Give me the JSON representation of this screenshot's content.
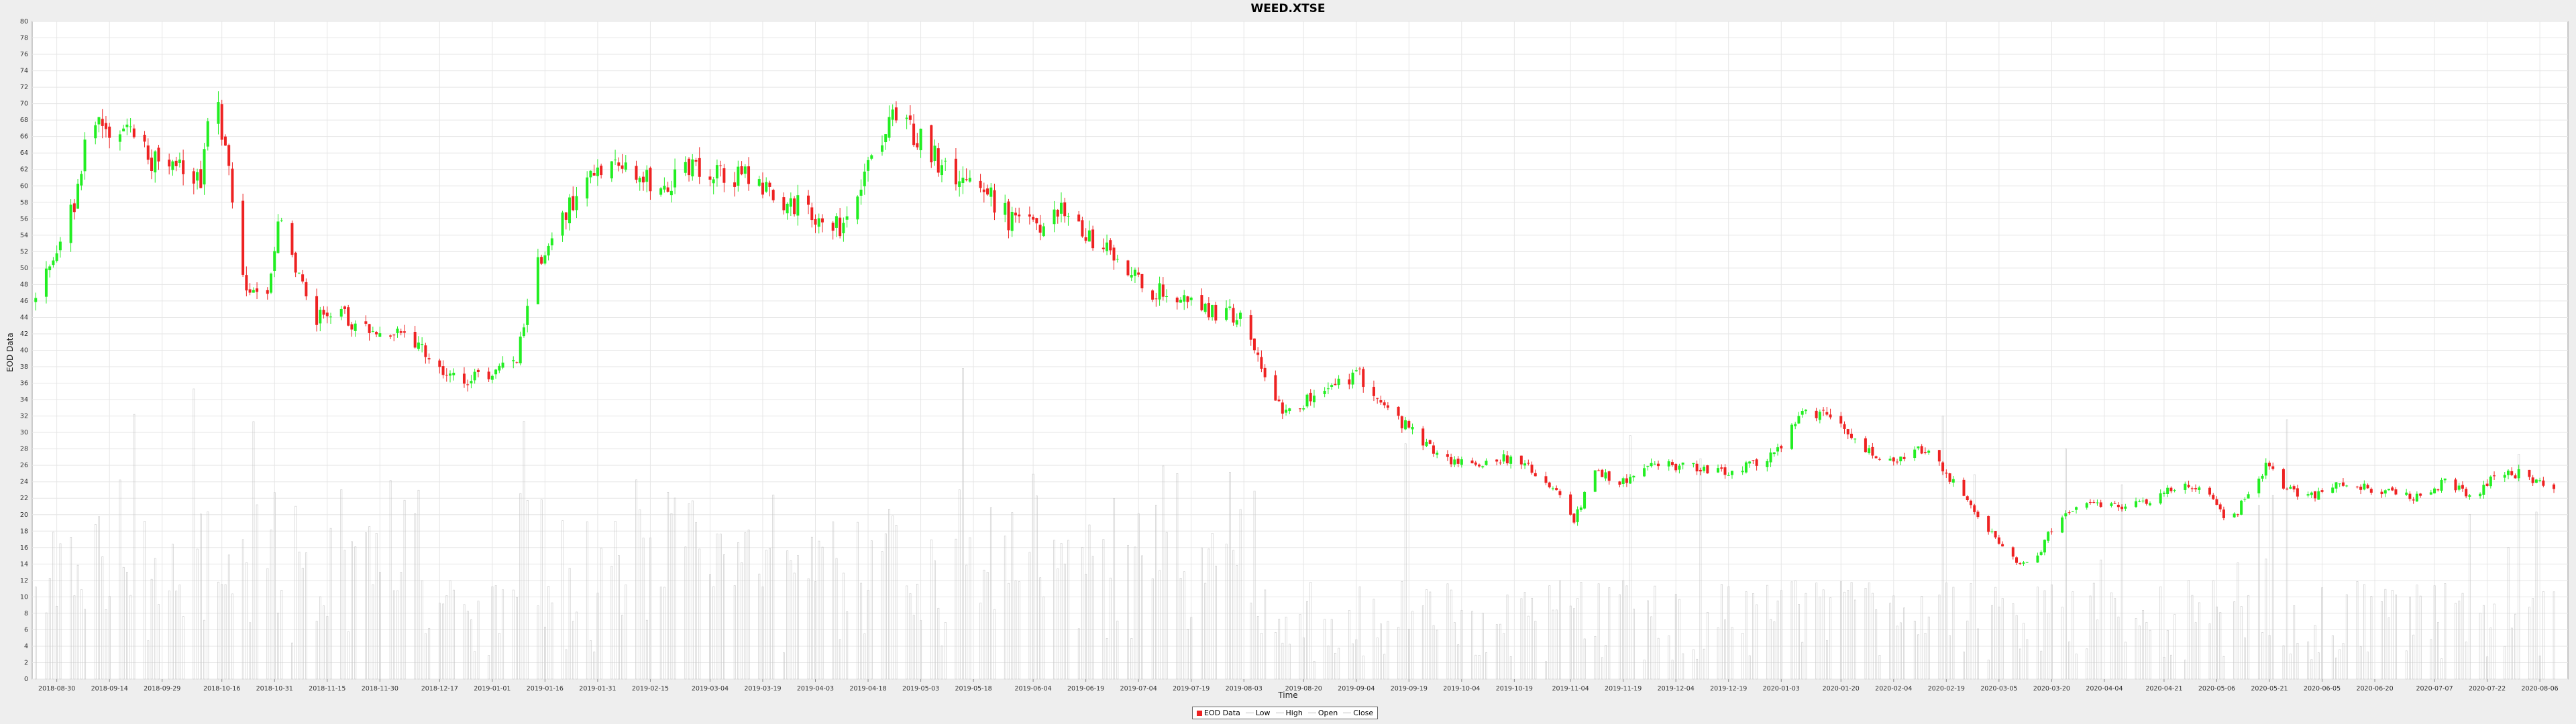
{
  "chart_data": {
    "type": "candlestick",
    "title": "WEED.XTSE",
    "xlabel": "Time",
    "ylabel": "EOD Data",
    "ylim": [
      0,
      80
    ],
    "yticks": [
      0,
      2,
      4,
      6,
      8,
      10,
      12,
      14,
      16,
      18,
      20,
      22,
      24,
      26,
      28,
      30,
      32,
      34,
      36,
      38,
      40,
      42,
      44,
      46,
      48,
      50,
      52,
      54,
      56,
      58,
      60,
      62,
      64,
      66,
      68,
      70,
      72,
      74,
      76,
      78,
      80
    ],
    "xticks": [
      "2018-08-30",
      "2018-09-14",
      "2018-09-29",
      "2018-10-16",
      "2018-10-31",
      "2018-11-15",
      "2018-11-30",
      "2018-12-17",
      "2019-01-01",
      "2019-01-16",
      "2019-01-31",
      "2019-02-15",
      "2019-03-04",
      "2019-03-19",
      "2019-04-03",
      "2019-04-18",
      "2019-05-03",
      "2019-05-18",
      "2019-06-04",
      "2019-06-19",
      "2019-07-04",
      "2019-07-19",
      "2019-08-03",
      "2019-08-20",
      "2019-09-04",
      "2019-09-19",
      "2019-10-04",
      "2019-10-19",
      "2019-11-04",
      "2019-11-19",
      "2019-12-04",
      "2019-12-19",
      "2020-01-03",
      "2020-01-20",
      "2020-02-04",
      "2020-02-19",
      "2020-03-05",
      "2020-03-20",
      "2020-04-04",
      "2020-04-21",
      "2020-05-06",
      "2020-05-21",
      "2020-06-05",
      "2020-06-20",
      "2020-07-07",
      "2020-07-22",
      "2020-08-06"
    ],
    "grid": true,
    "legend_placement": "bottom-center",
    "legend": [
      "EOD Data",
      "Low",
      "High",
      "Open",
      "Close"
    ],
    "series_close_path": [
      [
        "2018-08-24",
        46
      ],
      [
        "2018-08-30",
        52
      ],
      [
        "2018-09-04",
        58
      ],
      [
        "2018-09-08",
        68
      ],
      [
        "2018-09-14",
        66
      ],
      [
        "2018-09-20",
        67
      ],
      [
        "2018-09-26",
        63
      ],
      [
        "2018-10-03",
        62
      ],
      [
        "2018-10-10",
        61
      ],
      [
        "2018-10-14",
        72
      ],
      [
        "2018-10-18",
        62
      ],
      [
        "2018-10-22",
        48
      ],
      [
        "2018-10-28",
        45
      ],
      [
        "2018-11-01",
        56
      ],
      [
        "2018-11-06",
        50
      ],
      [
        "2018-11-12",
        44
      ],
      [
        "2018-11-20",
        44
      ],
      [
        "2018-11-30",
        42
      ],
      [
        "2018-12-08",
        42
      ],
      [
        "2018-12-15",
        39
      ],
      [
        "2018-12-22",
        36
      ],
      [
        "2019-01-01",
        37
      ],
      [
        "2019-01-08",
        39
      ],
      [
        "2019-01-13",
        50
      ],
      [
        "2019-01-20",
        56
      ],
      [
        "2019-01-28",
        60
      ],
      [
        "2019-02-03",
        64
      ],
      [
        "2019-02-10",
        62
      ],
      [
        "2019-02-18",
        60
      ],
      [
        "2019-02-25",
        62
      ],
      [
        "2019-03-06",
        62
      ],
      [
        "2019-03-14",
        61
      ],
      [
        "2019-03-22",
        59
      ],
      [
        "2019-04-01",
        57
      ],
      [
        "2019-04-10",
        55
      ],
      [
        "2019-04-18",
        63
      ],
      [
        "2019-04-24",
        68
      ],
      [
        "2019-05-03",
        66
      ],
      [
        "2019-05-10",
        62
      ],
      [
        "2019-05-18",
        61
      ],
      [
        "2019-05-28",
        56
      ],
      [
        "2019-06-04",
        55
      ],
      [
        "2019-06-12",
        57
      ],
      [
        "2019-06-19",
        54
      ],
      [
        "2019-06-28",
        52
      ],
      [
        "2019-07-06",
        47
      ],
      [
        "2019-07-14",
        47
      ],
      [
        "2019-07-22",
        45
      ],
      [
        "2019-08-03",
        44
      ],
      [
        "2019-08-08",
        38
      ],
      [
        "2019-08-14",
        33
      ],
      [
        "2019-08-22",
        34
      ],
      [
        "2019-08-30",
        36
      ],
      [
        "2019-09-05",
        37
      ],
      [
        "2019-09-12",
        33
      ],
      [
        "2019-09-20",
        30
      ],
      [
        "2019-09-28",
        27
      ],
      [
        "2019-10-06",
        26
      ],
      [
        "2019-10-16",
        27
      ],
      [
        "2019-10-26",
        25
      ],
      [
        "2019-11-01",
        22
      ],
      [
        "2019-11-05",
        19
      ],
      [
        "2019-11-10",
        25
      ],
      [
        "2019-11-19",
        24
      ],
      [
        "2019-11-28",
        26
      ],
      [
        "2019-12-08",
        26
      ],
      [
        "2019-12-18",
        25
      ],
      [
        "2019-12-26",
        26
      ],
      [
        "2020-01-03",
        28
      ],
      [
        "2020-01-08",
        32
      ],
      [
        "2020-01-16",
        32
      ],
      [
        "2020-01-26",
        28
      ],
      [
        "2020-02-04",
        26
      ],
      [
        "2020-02-12",
        28
      ],
      [
        "2020-02-19",
        25
      ],
      [
        "2020-02-26",
        21
      ],
      [
        "2020-03-04",
        17
      ],
      [
        "2020-03-10",
        14
      ],
      [
        "2020-03-16",
        15
      ],
      [
        "2020-03-22",
        20
      ],
      [
        "2020-03-30",
        21
      ],
      [
        "2020-04-10",
        21
      ],
      [
        "2020-04-18",
        22
      ],
      [
        "2020-04-26",
        24
      ],
      [
        "2020-05-04",
        22
      ],
      [
        "2020-05-10",
        19
      ],
      [
        "2020-05-14",
        22
      ],
      [
        "2020-05-20",
        26
      ],
      [
        "2020-05-24",
        24
      ],
      [
        "2020-06-01",
        22
      ],
      [
        "2020-06-10",
        24
      ],
      [
        "2020-06-20",
        23
      ],
      [
        "2020-07-01",
        22
      ],
      [
        "2020-07-10",
        24
      ],
      [
        "2020-07-18",
        22
      ],
      [
        "2020-07-24",
        25
      ],
      [
        "2020-08-01",
        25
      ],
      [
        "2020-08-06",
        24
      ],
      [
        "2020-08-10",
        23
      ]
    ],
    "colors": {
      "up": "#22ee22",
      "down": "#ee2222",
      "volume": "#c9c9c9",
      "grid": "#e6e6e6",
      "background": "#ffffff"
    }
  }
}
